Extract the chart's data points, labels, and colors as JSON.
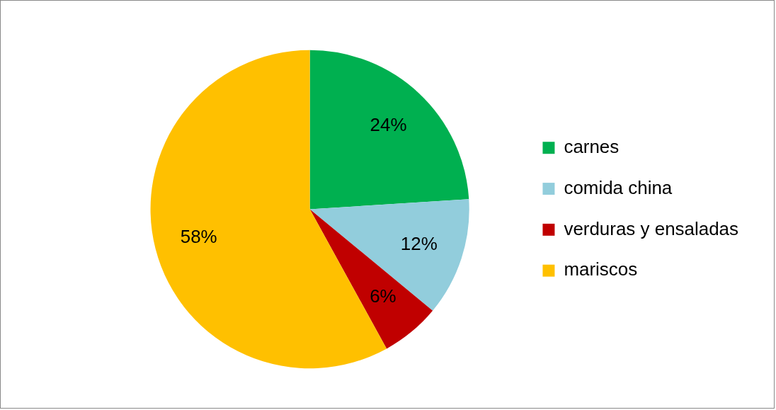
{
  "chart_data": {
    "type": "pie",
    "categories": [
      "carnes",
      "comida china",
      "verduras y ensaladas",
      "mariscos"
    ],
    "values": [
      24,
      12,
      6,
      58
    ],
    "colors": [
      "#00b050",
      "#92cddc",
      "#c00000",
      "#ffc000"
    ],
    "value_labels": [
      "24%",
      "12%",
      "6%",
      "58%"
    ],
    "legend": "right"
  }
}
